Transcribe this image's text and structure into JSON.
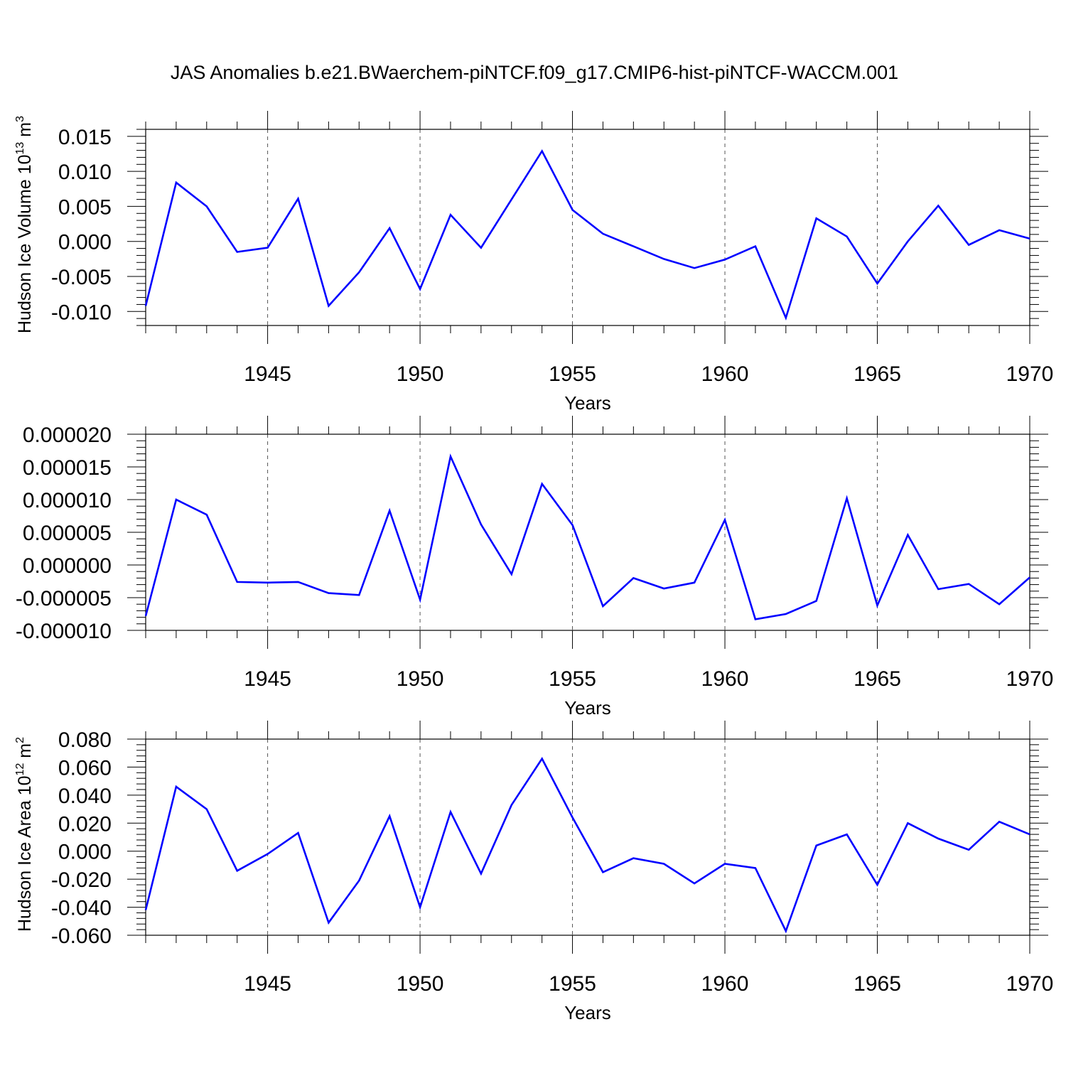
{
  "page_title": "JAS Anomalies b.e21.BWaerchem-piNTCF.f09_g17.CMIP6-hist-piNTCF-WACCM.001",
  "line_color": "#0000ff",
  "chart_data": [
    {
      "type": "line",
      "xlabel": "Years",
      "ylabel_base": "Hudson Ice Volume 10",
      "ylabel_exp": "13",
      "ylabel_unit": " m",
      "ylabel_unit_exp": "3",
      "xlim": [
        1941,
        1970
      ],
      "ylim": [
        -0.012,
        0.016
      ],
      "xticks": [
        1945,
        1950,
        1955,
        1960,
        1965,
        1970
      ],
      "xtick_labels": [
        "1945",
        "1950",
        "1955",
        "1960",
        "1965",
        "1970"
      ],
      "yticks": [
        -0.01,
        -0.005,
        0.0,
        0.005,
        0.01,
        0.015
      ],
      "ytick_labels": [
        "-0.010",
        "-0.005",
        "0.000",
        "0.005",
        "0.010",
        "0.015"
      ],
      "grid": "vertical dashed at major x ticks",
      "x": [
        1941,
        1942,
        1943,
        1944,
        1945,
        1946,
        1947,
        1948,
        1949,
        1950,
        1951,
        1952,
        1953,
        1954,
        1955,
        1956,
        1957,
        1958,
        1959,
        1960,
        1961,
        1962,
        1963,
        1964,
        1965,
        1966,
        1967,
        1968,
        1969,
        1970
      ],
      "values": [
        -0.0092,
        0.0084,
        0.005,
        -0.0015,
        -0.0009,
        0.0061,
        -0.0092,
        -0.0044,
        0.0019,
        -0.0068,
        0.0038,
        -0.0009,
        0.006,
        0.0129,
        0.0045,
        0.0011,
        -0.0007,
        -0.0025,
        -0.0038,
        -0.0026,
        -0.0007,
        -0.0109,
        0.0033,
        0.0007,
        -0.006,
        -0.0,
        0.0051,
        -0.0005,
        0.0016,
        0.0004
      ]
    },
    {
      "type": "line",
      "xlabel": "Years",
      "ylabel_base": "",
      "ylabel_exp": "",
      "ylabel_unit": "",
      "ylabel_unit_exp": "",
      "xlim": [
        1941,
        1970
      ],
      "ylim": [
        -1e-05,
        2e-05
      ],
      "xticks": [
        1945,
        1950,
        1955,
        1960,
        1965,
        1970
      ],
      "xtick_labels": [
        "1945",
        "1950",
        "1955",
        "1960",
        "1965",
        "1970"
      ],
      "yticks": [
        -1e-05,
        -5e-06,
        0.0,
        5e-06,
        1e-05,
        1.5e-05,
        2e-05
      ],
      "ytick_labels": [
        "-0.000010",
        "-0.000005",
        "0.000000",
        "0.000005",
        "0.000010",
        "0.000015",
        "0.000020"
      ],
      "grid": "vertical dashed at major x ticks",
      "x": [
        1941,
        1942,
        1943,
        1944,
        1945,
        1946,
        1947,
        1948,
        1949,
        1950,
        1951,
        1952,
        1953,
        1954,
        1955,
        1956,
        1957,
        1958,
        1959,
        1960,
        1961,
        1962,
        1963,
        1964,
        1965,
        1966,
        1967,
        1968,
        1969,
        1970
      ],
      "values": [
        -7.8e-06,
        1e-05,
        7.7e-06,
        -2.6e-06,
        -2.7e-06,
        -2.6e-06,
        -4.3e-06,
        -4.6e-06,
        8.3e-06,
        -5.3e-06,
        1.66e-05,
        6.2e-06,
        -1.4e-06,
        1.24e-05,
        6.1e-06,
        -6.3e-06,
        -2e-06,
        -3.6e-06,
        -2.7e-06,
        6.9e-06,
        -8.3e-06,
        -7.5e-06,
        -5.5e-06,
        1.02e-05,
        -6.2e-06,
        4.6e-06,
        -3.7e-06,
        -2.9e-06,
        -6e-06,
        -1.9e-06
      ]
    },
    {
      "type": "line",
      "xlabel": "Years",
      "ylabel_base": "Hudson Ice Area 10",
      "ylabel_exp": "12",
      "ylabel_unit": " m",
      "ylabel_unit_exp": "2",
      "xlim": [
        1941,
        1970
      ],
      "ylim": [
        -0.06,
        0.08
      ],
      "xticks": [
        1945,
        1950,
        1955,
        1960,
        1965,
        1970
      ],
      "xtick_labels": [
        "1945",
        "1950",
        "1955",
        "1960",
        "1965",
        "1970"
      ],
      "yticks": [
        -0.06,
        -0.04,
        -0.02,
        0.0,
        0.02,
        0.04,
        0.06,
        0.08
      ],
      "ytick_labels": [
        "-0.060",
        "-0.040",
        "-0.020",
        "0.000",
        "0.020",
        "0.040",
        "0.060",
        "0.080"
      ],
      "grid": "vertical dashed at major x ticks",
      "x": [
        1941,
        1942,
        1943,
        1944,
        1945,
        1946,
        1947,
        1948,
        1949,
        1950,
        1951,
        1952,
        1953,
        1954,
        1955,
        1956,
        1957,
        1958,
        1959,
        1960,
        1961,
        1962,
        1963,
        1964,
        1965,
        1966,
        1967,
        1968,
        1969,
        1970
      ],
      "values": [
        -0.042,
        0.046,
        0.03,
        -0.014,
        -0.002,
        0.013,
        -0.051,
        -0.021,
        0.025,
        -0.04,
        0.028,
        -0.016,
        0.033,
        0.066,
        0.024,
        -0.015,
        -0.005,
        -0.009,
        -0.023,
        -0.009,
        -0.012,
        -0.057,
        0.004,
        0.012,
        -0.024,
        0.02,
        0.009,
        0.001,
        0.021,
        0.012
      ]
    }
  ]
}
